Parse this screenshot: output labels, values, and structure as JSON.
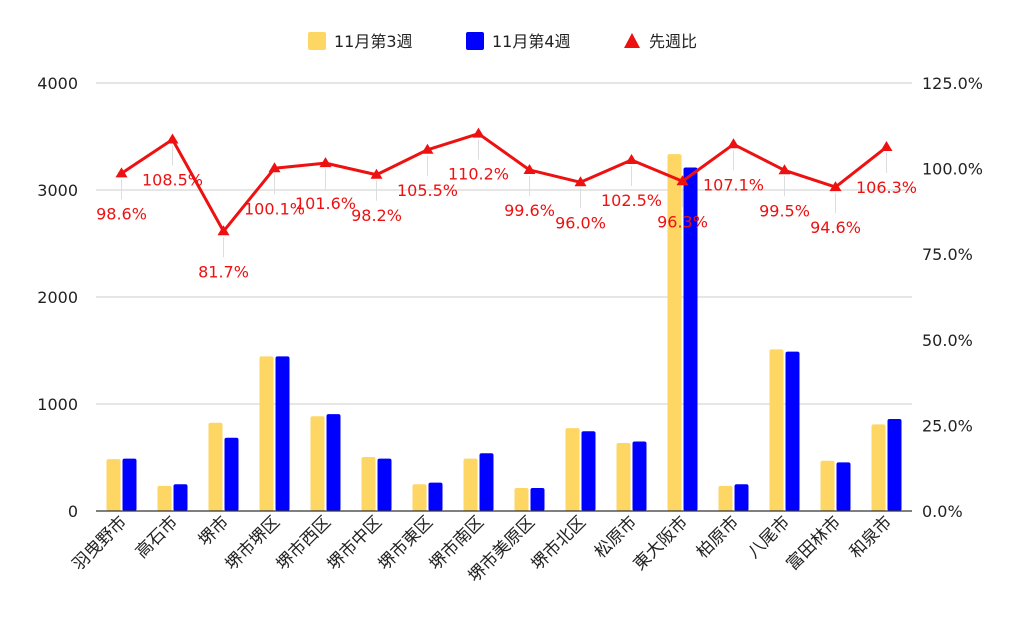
{
  "chart_data": {
    "type": "bar",
    "categories": [
      "羽曳野市",
      "高石市",
      "堺市",
      "堺市堺区",
      "堺市西区",
      "堺市中区",
      "堺市東区",
      "堺市南区",
      "堺市美原区",
      "堺市北区",
      "松原市",
      "東大阪市",
      "柏原市",
      "八尾市",
      "富田林市",
      "和泉市"
    ],
    "series": [
      {
        "name": "11月第3週",
        "type": "bar",
        "axis": "left",
        "color": "#fdd663",
        "values": [
          485,
          235,
          825,
          1445,
          885,
          505,
          250,
          490,
          215,
          775,
          635,
          3335,
          235,
          1510,
          470,
          810
        ]
      },
      {
        "name": "11月第4週",
        "type": "bar",
        "axis": "left",
        "color": "#0000ff",
        "values": [
          490,
          250,
          685,
          1445,
          905,
          490,
          265,
          540,
          215,
          745,
          650,
          3210,
          250,
          1490,
          455,
          860
        ]
      },
      {
        "name": "先週比",
        "type": "line",
        "axis": "right",
        "color": "#ee1111",
        "marker": "triangle",
        "values": [
          98.6,
          108.5,
          81.7,
          100.1,
          101.6,
          98.2,
          105.5,
          110.2,
          99.6,
          96.0,
          102.5,
          96.3,
          107.1,
          99.5,
          94.6,
          106.3
        ],
        "labels": [
          "98.6%",
          "108.5%",
          "81.7%",
          "100.1%",
          "101.6%",
          "98.2%",
          "105.5%",
          "110.2%",
          "99.6%",
          "96.0%",
          "102.5%",
          "96.3%",
          "107.1%",
          "99.5%",
          "94.6%",
          "106.3%"
        ],
        "label_position": [
          "below",
          "below",
          "below",
          "below",
          "below",
          "below",
          "below",
          "below",
          "below",
          "below",
          "below",
          "below",
          "below",
          "below",
          "below",
          "below"
        ]
      }
    ],
    "y_left": {
      "lim": [
        0,
        4000
      ],
      "ticks": [
        0,
        1000,
        2000,
        3000,
        4000
      ],
      "tick_labels": [
        "0",
        "1000",
        "2000",
        "3000",
        "4000"
      ]
    },
    "y_right": {
      "lim": [
        0,
        125
      ],
      "ticks": [
        0,
        25,
        50,
        75,
        100,
        125
      ],
      "tick_labels": [
        "0.0%",
        "25.0%",
        "50.0%",
        "75.0%",
        "100.0%",
        "125.0%"
      ]
    },
    "grid": true,
    "legend": {
      "position": "top",
      "items": [
        "11月第3週",
        "11月第4週",
        "先週比"
      ]
    },
    "title": "",
    "xlabel": "",
    "ylabel": ""
  }
}
